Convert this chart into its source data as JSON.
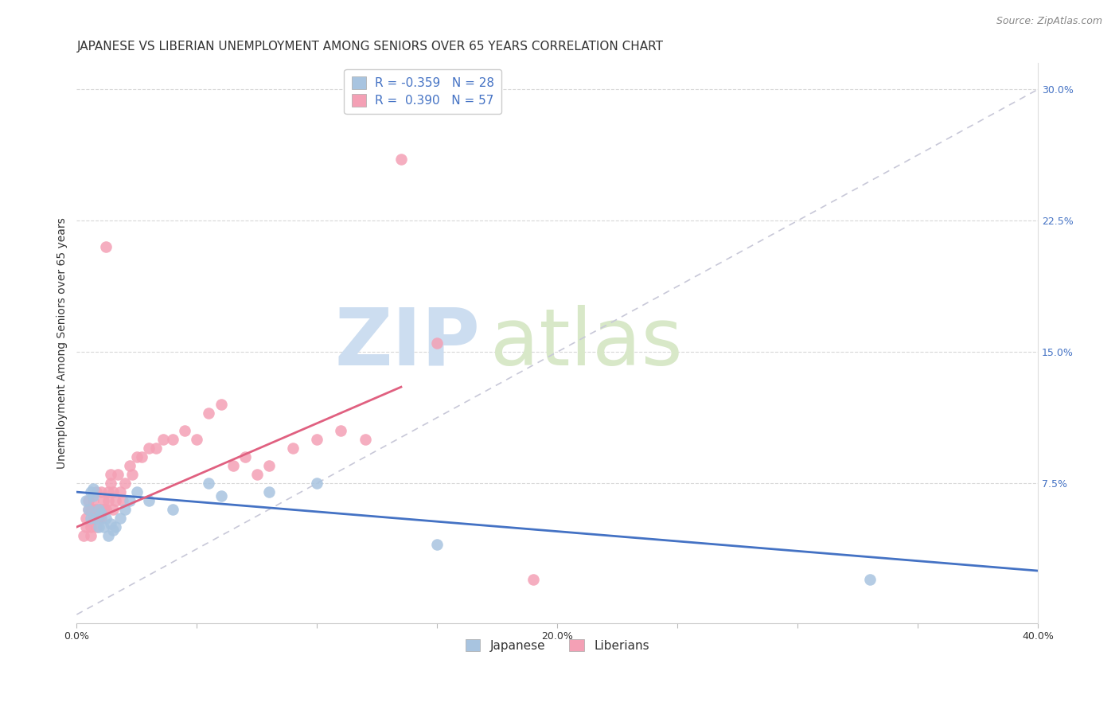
{
  "title": "JAPANESE VS LIBERIAN UNEMPLOYMENT AMONG SENIORS OVER 65 YEARS CORRELATION CHART",
  "source": "Source: ZipAtlas.com",
  "ylabel": "Unemployment Among Seniors over 65 years",
  "xlim": [
    0.0,
    0.4
  ],
  "ylim": [
    -0.005,
    0.315
  ],
  "legend_r_japanese": "-0.359",
  "legend_n_japanese": "28",
  "legend_r_liberian": "0.390",
  "legend_n_liberian": "57",
  "japanese_color": "#a8c4e0",
  "liberian_color": "#f4a0b5",
  "japanese_line_color": "#4472c4",
  "liberian_line_color": "#e06080",
  "diag_line_color": "#c8c8d8",
  "background_color": "#ffffff",
  "title_fontsize": 11,
  "axis_label_fontsize": 10,
  "tick_fontsize": 9,
  "legend_fontsize": 11,
  "source_fontsize": 9,
  "japanese_x": [
    0.004,
    0.005,
    0.006,
    0.006,
    0.007,
    0.007,
    0.008,
    0.009,
    0.009,
    0.01,
    0.011,
    0.012,
    0.013,
    0.014,
    0.015,
    0.016,
    0.018,
    0.02,
    0.022,
    0.025,
    0.03,
    0.04,
    0.055,
    0.06,
    0.08,
    0.1,
    0.15,
    0.33
  ],
  "japanese_y": [
    0.065,
    0.06,
    0.055,
    0.07,
    0.068,
    0.072,
    0.055,
    0.05,
    0.06,
    0.058,
    0.05,
    0.055,
    0.045,
    0.052,
    0.048,
    0.05,
    0.055,
    0.06,
    0.065,
    0.07,
    0.065,
    0.06,
    0.075,
    0.068,
    0.07,
    0.075,
    0.04,
    0.02
  ],
  "liberian_x": [
    0.003,
    0.004,
    0.004,
    0.005,
    0.005,
    0.006,
    0.006,
    0.006,
    0.007,
    0.007,
    0.007,
    0.008,
    0.008,
    0.008,
    0.009,
    0.009,
    0.01,
    0.01,
    0.01,
    0.011,
    0.011,
    0.012,
    0.012,
    0.013,
    0.013,
    0.014,
    0.014,
    0.015,
    0.015,
    0.016,
    0.017,
    0.018,
    0.019,
    0.02,
    0.022,
    0.023,
    0.025,
    0.027,
    0.03,
    0.033,
    0.036,
    0.04,
    0.045,
    0.05,
    0.055,
    0.06,
    0.065,
    0.07,
    0.075,
    0.08,
    0.09,
    0.1,
    0.11,
    0.12,
    0.135,
    0.15,
    0.19
  ],
  "liberian_y": [
    0.045,
    0.05,
    0.055,
    0.06,
    0.065,
    0.045,
    0.05,
    0.06,
    0.055,
    0.06,
    0.065,
    0.05,
    0.06,
    0.07,
    0.055,
    0.06,
    0.055,
    0.06,
    0.07,
    0.06,
    0.065,
    0.06,
    0.21,
    0.065,
    0.07,
    0.075,
    0.08,
    0.06,
    0.07,
    0.065,
    0.08,
    0.07,
    0.065,
    0.075,
    0.085,
    0.08,
    0.09,
    0.09,
    0.095,
    0.095,
    0.1,
    0.1,
    0.105,
    0.1,
    0.115,
    0.12,
    0.085,
    0.09,
    0.08,
    0.085,
    0.095,
    0.1,
    0.105,
    0.1,
    0.26,
    0.155,
    0.02
  ],
  "jap_trend_x": [
    0.0,
    0.4
  ],
  "jap_trend_y": [
    0.07,
    0.025
  ],
  "lib_trend_x": [
    0.0,
    0.135
  ],
  "lib_trend_y": [
    0.05,
    0.13
  ]
}
